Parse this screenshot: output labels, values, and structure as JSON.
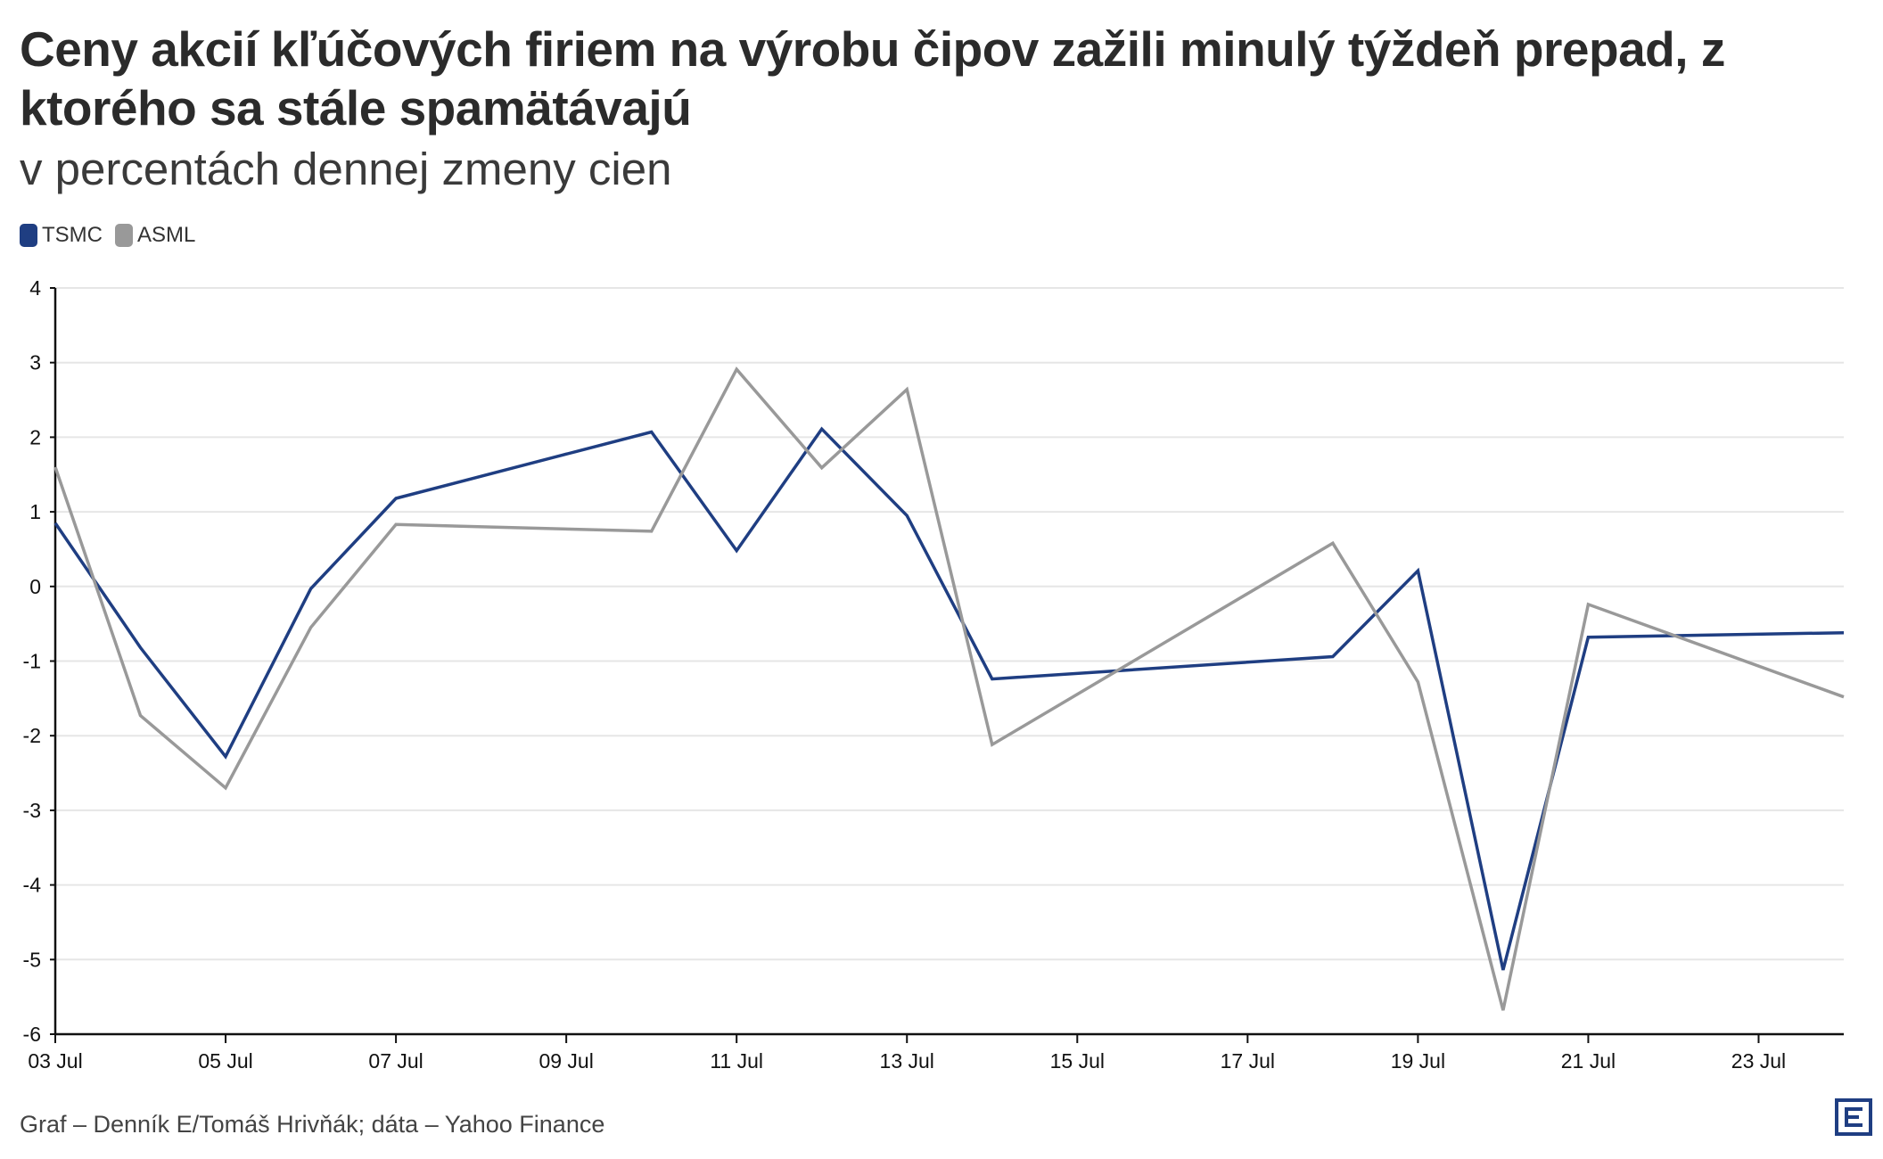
{
  "title": "Ceny akcií kľúčových firiem na výrobu čipov zažili minulý týždeň prepad, z ktorého sa stále spamätávajú",
  "subtitle": "v percentách dennej zmeny cien",
  "footer": "Graf – Denník E/Tomáš Hrivňák; dáta – Yahoo Finance",
  "logo_icon": "denník-e-logo-icon",
  "colors": {
    "tsmc": "#1f3e82",
    "asml": "#999999",
    "grid": "#e6e6e6",
    "axis": "#111111",
    "logo": "#1f3e82"
  },
  "chart_data": {
    "type": "line",
    "title": "Ceny akcií kľúčových firiem na výrobu čipov zažili minulý týždeň prepad, z ktorého sa stále spamätávajú",
    "subtitle": "v percentách dennej zmeny cien",
    "xlabel": "",
    "ylabel": "",
    "x_domain": [
      "2024-07-03",
      "2024-07-24"
    ],
    "ylim": [
      -6,
      4
    ],
    "yticks": [
      4,
      3,
      2,
      1,
      0,
      -1,
      -2,
      -3,
      -4,
      -5,
      -6
    ],
    "xticks": [
      {
        "date": "2024-07-03",
        "label": "03 Jul"
      },
      {
        "date": "2024-07-05",
        "label": "05 Jul"
      },
      {
        "date": "2024-07-07",
        "label": "07 Jul"
      },
      {
        "date": "2024-07-09",
        "label": "09 Jul"
      },
      {
        "date": "2024-07-11",
        "label": "11 Jul"
      },
      {
        "date": "2024-07-13",
        "label": "13 Jul"
      },
      {
        "date": "2024-07-15",
        "label": "15 Jul"
      },
      {
        "date": "2024-07-17",
        "label": "17 Jul"
      },
      {
        "date": "2024-07-19",
        "label": "19 Jul"
      },
      {
        "date": "2024-07-21",
        "label": "21 Jul"
      },
      {
        "date": "2024-07-23",
        "label": "23 Jul"
      }
    ],
    "grid": true,
    "legend_position": "top-left",
    "series": [
      {
        "name": "TSMC",
        "color": "#1f3e82",
        "points": [
          {
            "date": "2024-07-03",
            "value": 0.85
          },
          {
            "date": "2024-07-04",
            "value": -0.82
          },
          {
            "date": "2024-07-05",
            "value": -2.28
          },
          {
            "date": "2024-07-06",
            "value": -0.03
          },
          {
            "date": "2024-07-07",
            "value": 1.18
          },
          {
            "date": "2024-07-10",
            "value": 2.07
          },
          {
            "date": "2024-07-11",
            "value": 0.48
          },
          {
            "date": "2024-07-12",
            "value": 2.11
          },
          {
            "date": "2024-07-13",
            "value": 0.95
          },
          {
            "date": "2024-07-14",
            "value": -1.24
          },
          {
            "date": "2024-07-18",
            "value": -0.94
          },
          {
            "date": "2024-07-19",
            "value": 0.21
          },
          {
            "date": "2024-07-20",
            "value": -5.14
          },
          {
            "date": "2024-07-21",
            "value": -0.68
          },
          {
            "date": "2024-07-24",
            "value": -0.62
          }
        ]
      },
      {
        "name": "ASML",
        "color": "#999999",
        "points": [
          {
            "date": "2024-07-03",
            "value": 1.6
          },
          {
            "date": "2024-07-04",
            "value": -1.73
          },
          {
            "date": "2024-07-05",
            "value": -2.7
          },
          {
            "date": "2024-07-06",
            "value": -0.55
          },
          {
            "date": "2024-07-07",
            "value": 0.83
          },
          {
            "date": "2024-07-10",
            "value": 0.74
          },
          {
            "date": "2024-07-11",
            "value": 2.91
          },
          {
            "date": "2024-07-12",
            "value": 1.59
          },
          {
            "date": "2024-07-13",
            "value": 2.64
          },
          {
            "date": "2024-07-14",
            "value": -2.12
          },
          {
            "date": "2024-07-18",
            "value": 0.58
          },
          {
            "date": "2024-07-19",
            "value": -1.28
          },
          {
            "date": "2024-07-20",
            "value": -5.68
          },
          {
            "date": "2024-07-21",
            "value": -0.24
          },
          {
            "date": "2024-07-24",
            "value": -1.48
          }
        ]
      }
    ]
  }
}
